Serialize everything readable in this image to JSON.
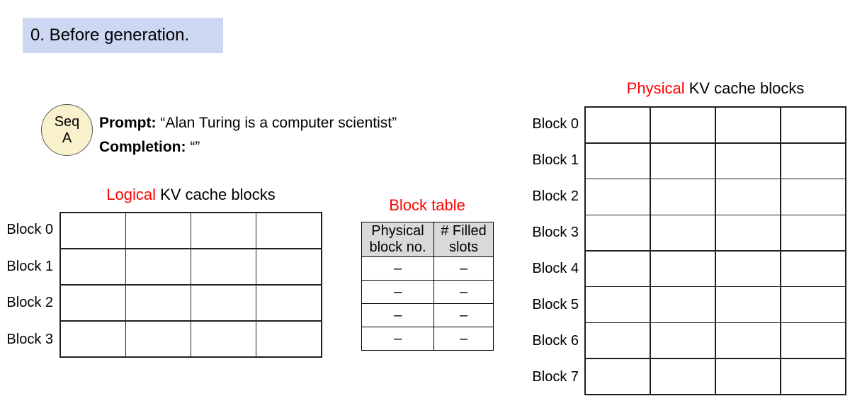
{
  "step_title": "0. Before generation.",
  "sequence": {
    "circle_line1": "Seq",
    "circle_line2": "A",
    "prompt_label": "Prompt:",
    "prompt_text": " “Alan Turing is a computer scientist”",
    "completion_label": "Completion:",
    "completion_text": " “”"
  },
  "logical": {
    "title_highlight": "Logical",
    "title_rest": " KV cache blocks",
    "row_labels": [
      "Block 0",
      "Block 1",
      "Block 2",
      "Block 3"
    ],
    "cols": 4
  },
  "block_table": {
    "title": "Block table",
    "headers": [
      "Physical block no.",
      "# Filled slots"
    ],
    "rows": [
      [
        "–",
        "–"
      ],
      [
        "–",
        "–"
      ],
      [
        "–",
        "–"
      ],
      [
        "–",
        "–"
      ]
    ]
  },
  "physical": {
    "title_highlight": "Physical",
    "title_rest": " KV cache blocks",
    "row_labels": [
      "Block 0",
      "Block 1",
      "Block 2",
      "Block 3",
      "Block 4",
      "Block 5",
      "Block 6",
      "Block 7"
    ],
    "cols": 4
  },
  "colors": {
    "badge_bg": "#ccd7f1",
    "seq_circle_bg": "#f9f0cc",
    "table_header_bg": "#d9d9d9",
    "accent_red": "#ff0000",
    "grid_line": "#1f1f1f"
  }
}
